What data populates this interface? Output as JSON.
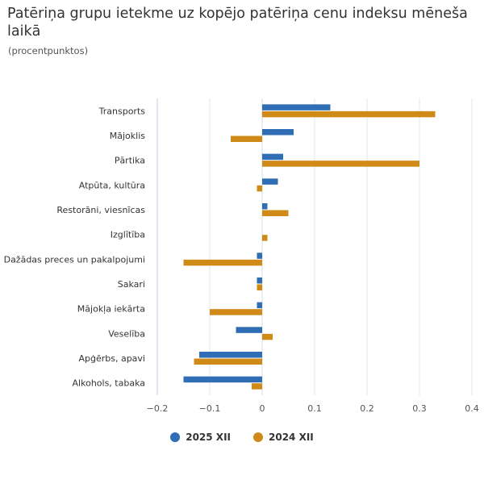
{
  "title": "Patēriņa grupu ietekme uz kopējo patēriņa cenu indeksu mēneša laikā",
  "subtitle": "(procentpunktos)",
  "colors": {
    "series_2025": "#2f6db5",
    "series_2024": "#d08a17",
    "grid": "#dde7ee",
    "axis": "#bfd2e0"
  },
  "chart_data": {
    "type": "bar",
    "orientation": "horizontal",
    "title": "Patēriņa grupu ietekme uz kopējo patēriņa cenu indeksu mēneša laikā",
    "subtitle": "(procentpunktos)",
    "categories": [
      "Transports",
      "Mājoklis",
      "Pārtika",
      "Atpūta, kultūra",
      "Restorāni, viesnīcas",
      "Izglītība",
      "Dažādas preces un pakalpojumi",
      "Sakari",
      "Mājokļa iekārta",
      "Veselība",
      "Apģērbs, apavi",
      "Alkohols, tabaka"
    ],
    "series": [
      {
        "name": "2025 XII",
        "values": [
          0.13,
          0.06,
          0.04,
          0.03,
          0.01,
          0.0,
          -0.01,
          -0.01,
          -0.01,
          -0.05,
          -0.12,
          -0.15
        ]
      },
      {
        "name": "2024 XII",
        "values": [
          0.33,
          -0.06,
          0.3,
          -0.01,
          0.05,
          0.01,
          -0.15,
          -0.01,
          -0.1,
          0.02,
          -0.13,
          -0.02
        ]
      }
    ],
    "xlim": [
      -0.2,
      0.4
    ],
    "xticks": [
      -0.2,
      -0.1,
      0,
      0.1,
      0.2,
      0.3,
      0.4
    ],
    "xtick_labels": [
      "−0.2",
      "−0.1",
      "0",
      "0.1",
      "0.2",
      "0.3",
      "0.4"
    ],
    "xlabel": "",
    "ylabel": "",
    "grid": true,
    "legend_position": "bottom-center"
  }
}
